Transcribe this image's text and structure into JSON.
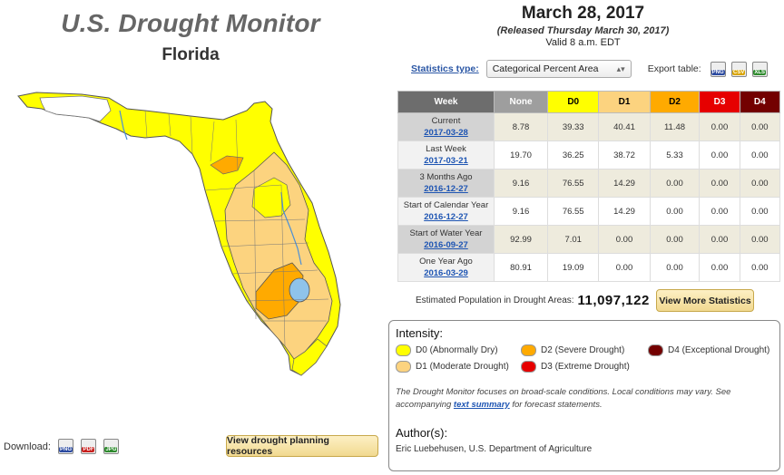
{
  "header": {
    "title": "U.S. Drought Monitor",
    "state": "Florida"
  },
  "date": {
    "main": "March 28, 2017",
    "released": "(Released Thursday March 30, 2017)",
    "valid": "Valid 8 a.m. EDT"
  },
  "controls": {
    "stats_type_label": "Statistics type:",
    "stats_type_value": "Categorical Percent Area",
    "export_label": "Export table:",
    "export_icons": [
      {
        "label": "PNG",
        "color": "#2b4aa0"
      },
      {
        "label": "CSV",
        "color": "#d9a400"
      },
      {
        "label": "XLS",
        "color": "#2e8b2e"
      }
    ]
  },
  "table": {
    "headers": [
      {
        "label": "Week",
        "bg": "#6d6d6d",
        "fg": "#ffffff"
      },
      {
        "label": "None",
        "bg": "#9e9e9e",
        "fg": "#ffffff"
      },
      {
        "label": "D0",
        "bg": "#ffff00",
        "fg": "#000000"
      },
      {
        "label": "D1",
        "bg": "#fcd37f",
        "fg": "#000000"
      },
      {
        "label": "D2",
        "bg": "#ffaa00",
        "fg": "#000000"
      },
      {
        "label": "D3",
        "bg": "#e60000",
        "fg": "#ffffff"
      },
      {
        "label": "D4",
        "bg": "#730000",
        "fg": "#ffffff"
      }
    ],
    "rows": [
      {
        "label": "Current",
        "date": "2017-03-28",
        "values": [
          "8.78",
          "39.33",
          "40.41",
          "11.48",
          "0.00",
          "0.00"
        ]
      },
      {
        "label": "Last Week",
        "date": "2017-03-21",
        "values": [
          "19.70",
          "36.25",
          "38.72",
          "5.33",
          "0.00",
          "0.00"
        ]
      },
      {
        "label": "3 Months Ago",
        "date": "2016-12-27",
        "values": [
          "9.16",
          "76.55",
          "14.29",
          "0.00",
          "0.00",
          "0.00"
        ]
      },
      {
        "label": "Start of Calendar Year",
        "date": "2016-12-27",
        "values": [
          "9.16",
          "76.55",
          "14.29",
          "0.00",
          "0.00",
          "0.00"
        ]
      },
      {
        "label": "Start of Water Year",
        "date": "2016-09-27",
        "values": [
          "92.99",
          "7.01",
          "0.00",
          "0.00",
          "0.00",
          "0.00"
        ]
      },
      {
        "label": "One Year Ago",
        "date": "2016-03-29",
        "values": [
          "80.91",
          "19.09",
          "0.00",
          "0.00",
          "0.00",
          "0.00"
        ]
      }
    ]
  },
  "population": {
    "label": "Estimated Population in Drought Areas:",
    "value": "11,097,122"
  },
  "more_stats_label": "View More Statistics",
  "legend": {
    "title": "Intensity:",
    "items": [
      {
        "code": "D0",
        "desc": "(Abnormally Dry)",
        "color": "#ffff00"
      },
      {
        "code": "D1",
        "desc": "(Moderate Drought)",
        "color": "#fcd37f"
      },
      {
        "code": "D2",
        "desc": "(Severe Drought)",
        "color": "#ffaa00"
      },
      {
        "code": "D3",
        "desc": "(Extreme Drought)",
        "color": "#e60000"
      },
      {
        "code": "D4",
        "desc": "(Exceptional Drought)",
        "color": "#730000"
      }
    ],
    "note_before": "The Drought Monitor focuses on broad-scale conditions. Local conditions may vary. See accompanying",
    "note_link": "text summary",
    "note_after": "for forecast statements.",
    "author_title": "Author(s):",
    "author_name": "Eric Luebehusen, U.S. Department of Agriculture"
  },
  "download": {
    "label": "Download:",
    "icons": [
      {
        "label": "PNG",
        "color": "#2b4aa0"
      },
      {
        "label": "PDF",
        "color": "#c8201e"
      },
      {
        "label": "JPG",
        "color": "#2e8b2e"
      }
    ]
  },
  "planning_label": "View drought planning resources"
}
